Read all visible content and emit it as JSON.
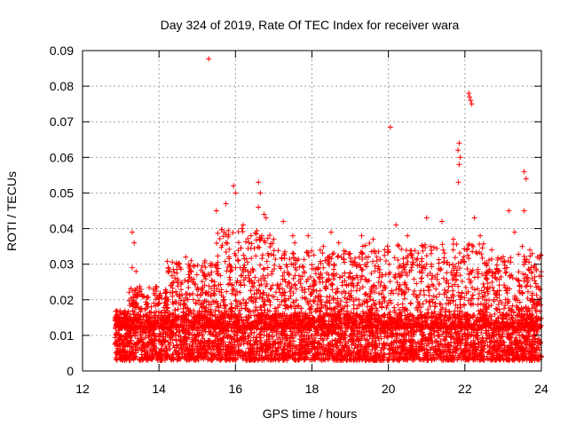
{
  "chart_data": {
    "type": "scatter",
    "title": "Day 324 of 2019, Rate Of TEC Index for receiver wara",
    "xlabel": "GPS time / hours",
    "ylabel": "ROTI / TECUs",
    "xlim": [
      12,
      24
    ],
    "ylim": [
      0,
      0.09
    ],
    "x_ticks": [
      12,
      14,
      16,
      18,
      20,
      22,
      24
    ],
    "x_tick_labels": [
      "12",
      "14",
      "16",
      "18",
      "20",
      "22",
      "24"
    ],
    "y_ticks": [
      0,
      0.01,
      0.02,
      0.03,
      0.04,
      0.05,
      0.06,
      0.07,
      0.08,
      0.09
    ],
    "y_tick_labels": [
      "0",
      "0.01",
      "0.02",
      "0.03",
      "0.04",
      "0.05",
      "0.06",
      "0.07",
      "0.08",
      "0.09"
    ],
    "grid": true,
    "marker": "+",
    "color": "#ff0000",
    "data_range_x": [
      12.85,
      24.0
    ],
    "baseline_band": [
      0.003,
      0.016
    ],
    "series": [
      {
        "name": "ROTI",
        "points": [
          [
            13.3,
            0.039
          ],
          [
            13.35,
            0.036
          ],
          [
            13.3,
            0.029
          ],
          [
            13.4,
            0.028
          ],
          [
            14.25,
            0.029
          ],
          [
            14.5,
            0.03
          ],
          [
            14.7,
            0.032
          ],
          [
            15.3,
            0.0877
          ],
          [
            15.5,
            0.045
          ],
          [
            15.75,
            0.047
          ],
          [
            15.7,
            0.039
          ],
          [
            15.95,
            0.052
          ],
          [
            16.0,
            0.05
          ],
          [
            16.2,
            0.041
          ],
          [
            16.6,
            0.053
          ],
          [
            16.65,
            0.05
          ],
          [
            16.6,
            0.046
          ],
          [
            16.75,
            0.044
          ],
          [
            16.8,
            0.043
          ],
          [
            17.0,
            0.037
          ],
          [
            17.25,
            0.042
          ],
          [
            17.5,
            0.038
          ],
          [
            17.55,
            0.036
          ],
          [
            17.9,
            0.038
          ],
          [
            18.3,
            0.035
          ],
          [
            18.5,
            0.039
          ],
          [
            18.7,
            0.036
          ],
          [
            19.0,
            0.033
          ],
          [
            19.3,
            0.038
          ],
          [
            19.6,
            0.037
          ],
          [
            19.9,
            0.034
          ],
          [
            20.05,
            0.0685
          ],
          [
            20.2,
            0.041
          ],
          [
            20.5,
            0.038
          ],
          [
            21.0,
            0.043
          ],
          [
            21.1,
            0.035
          ],
          [
            21.4,
            0.042
          ],
          [
            21.7,
            0.037
          ],
          [
            21.85,
            0.064
          ],
          [
            21.82,
            0.062
          ],
          [
            21.88,
            0.06
          ],
          [
            21.85,
            0.058
          ],
          [
            21.83,
            0.053
          ],
          [
            22.1,
            0.078
          ],
          [
            22.12,
            0.077
          ],
          [
            22.15,
            0.076
          ],
          [
            22.18,
            0.075
          ],
          [
            22.25,
            0.043
          ],
          [
            22.4,
            0.038
          ],
          [
            22.7,
            0.034
          ],
          [
            23.15,
            0.045
          ],
          [
            23.3,
            0.039
          ],
          [
            23.5,
            0.035
          ],
          [
            23.55,
            0.056
          ],
          [
            23.6,
            0.054
          ],
          [
            23.55,
            0.045
          ],
          [
            23.7,
            0.034
          ],
          [
            23.9,
            0.032
          ]
        ]
      }
    ]
  }
}
